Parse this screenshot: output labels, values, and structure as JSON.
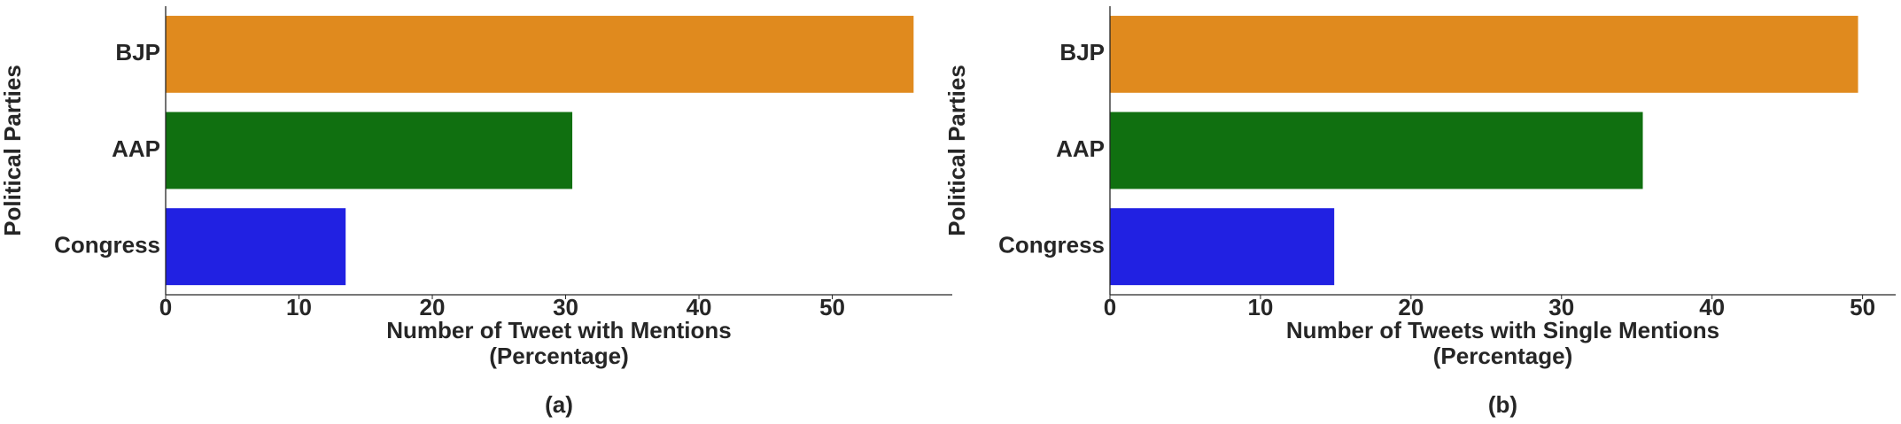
{
  "chart_data": [
    {
      "type": "bar",
      "orientation": "horizontal",
      "ylabel": "Political Parties",
      "xlabel": [
        "Number of Tweet with Mentions",
        "(Percentage)"
      ],
      "caption": "(a)",
      "categories": [
        "BJP",
        "AAP",
        "Congress"
      ],
      "values": [
        56.1,
        30.5,
        13.5
      ],
      "colors": [
        "#e08a1e",
        "#107010",
        "#2121e2"
      ],
      "xlim": [
        0,
        59
      ],
      "xticks": [
        0,
        10,
        20,
        30,
        40,
        50
      ]
    },
    {
      "type": "bar",
      "orientation": "horizontal",
      "ylabel": "Political Parties",
      "xlabel": [
        "Number of Tweets with Single Mentions",
        "(Percentage)"
      ],
      "caption": "(b)",
      "categories": [
        "BJP",
        "AAP",
        "Congress"
      ],
      "values": [
        49.7,
        35.4,
        14.9
      ],
      "colors": [
        "#e08a1e",
        "#107010",
        "#2121e2"
      ],
      "xlim": [
        0,
        52.2
      ],
      "xticks": [
        0,
        10,
        20,
        30,
        40,
        50
      ]
    }
  ]
}
